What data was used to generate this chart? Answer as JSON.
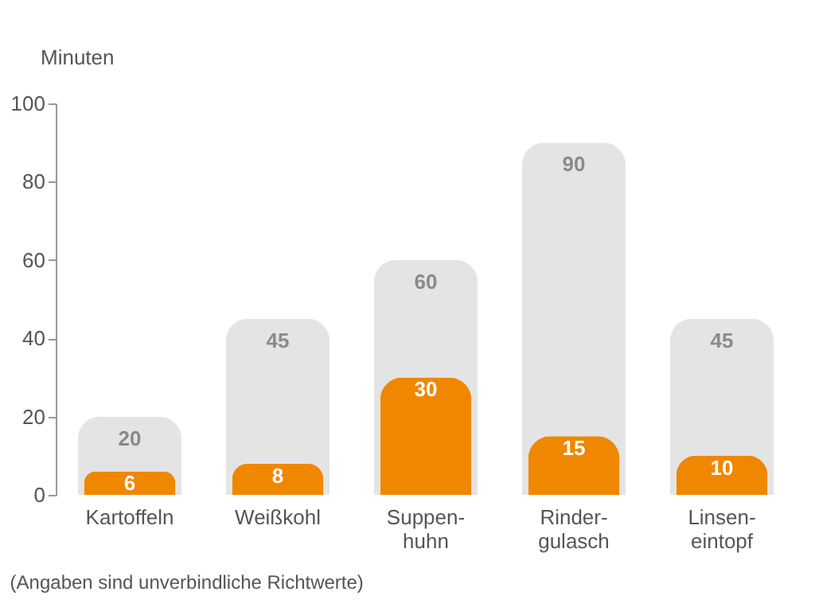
{
  "chart_data": {
    "type": "bar",
    "ylabel": "Minuten",
    "categories": [
      "Kartoffeln",
      "Weißkohl",
      "Suppen-\nhuhn",
      "Rinder-\ngulasch",
      "Linsen-\neintopf"
    ],
    "series": [
      {
        "color": "#e4e4e4",
        "values": [
          20,
          45,
          60,
          90,
          45
        ]
      },
      {
        "color": "#f08700",
        "values": [
          6,
          8,
          30,
          15,
          10
        ]
      }
    ],
    "ylim": [
      0,
      100
    ],
    "yticks": [
      0,
      20,
      40,
      60,
      80,
      100
    ],
    "grid": false,
    "data_labels": true,
    "annotations": [
      "(Angaben sind unverbindliche Richtwerte)"
    ]
  }
}
